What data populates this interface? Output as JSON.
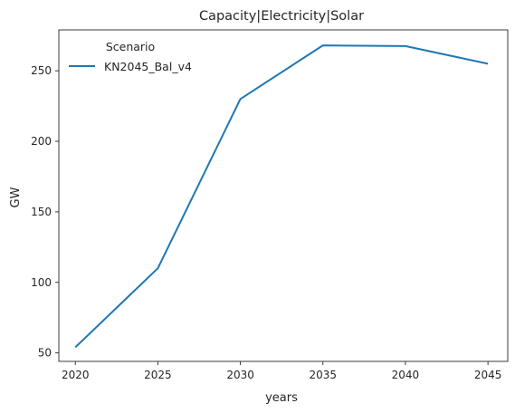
{
  "chart_data": {
    "type": "line",
    "title": "Capacity|Electricity|Solar",
    "xlabel": "years",
    "ylabel": "GW",
    "x": [
      2020,
      2025,
      2030,
      2035,
      2040,
      2045
    ],
    "series": [
      {
        "name": "KN2045_Bal_v4",
        "values": [
          54,
          110,
          230,
          268,
          267.5,
          255
        ],
        "color": "#1f77b4"
      }
    ],
    "xticks": [
      2020,
      2025,
      2030,
      2035,
      2040,
      2045
    ],
    "yticks": [
      50,
      100,
      150,
      200,
      250
    ],
    "xlim": [
      2019,
      2046.2
    ],
    "ylim": [
      44,
      279
    ],
    "grid": false,
    "legend": {
      "title": "Scenario",
      "placement": "top-left"
    }
  }
}
